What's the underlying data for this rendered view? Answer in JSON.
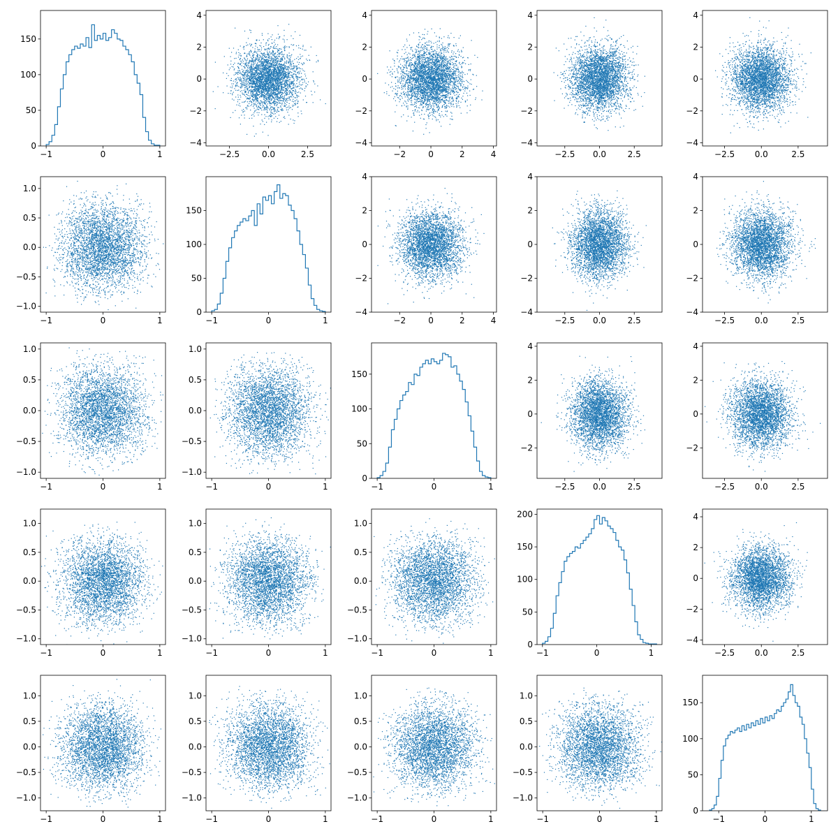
{
  "figure": {
    "background": "#ffffff",
    "accent": "#1f77b4",
    "grid": false,
    "rows": 5,
    "cols": 5
  },
  "chart_data": [
    {
      "row": 0,
      "col": 0,
      "type": "histogram",
      "xlim": [
        -1.1,
        1.1
      ],
      "ylim": [
        0,
        190
      ],
      "xticks": [
        -1,
        0,
        1
      ],
      "yticks": [
        0,
        50,
        100,
        150
      ],
      "bins": [
        -1.0,
        -0.95,
        -0.9,
        -0.85,
        -0.8,
        -0.75,
        -0.7,
        -0.65,
        -0.6,
        -0.55,
        -0.5,
        -0.45,
        -0.4,
        -0.35,
        -0.3,
        -0.25,
        -0.2,
        -0.15,
        -0.1,
        -0.05,
        0.0,
        0.05,
        0.1,
        0.15,
        0.2,
        0.25,
        0.3,
        0.35,
        0.4,
        0.45,
        0.5,
        0.55,
        0.6,
        0.65,
        0.7,
        0.75,
        0.8,
        0.85,
        0.9,
        0.95,
        1.0
      ],
      "counts": [
        2,
        6,
        15,
        30,
        55,
        80,
        100,
        118,
        128,
        135,
        140,
        137,
        143,
        140,
        152,
        138,
        170,
        148,
        155,
        150,
        158,
        148,
        152,
        163,
        158,
        150,
        148,
        140,
        135,
        128,
        118,
        100,
        88,
        72,
        40,
        20,
        8,
        3,
        1,
        1
      ]
    },
    {
      "row": 0,
      "col": 1,
      "type": "scatter",
      "distribution": "normal",
      "xlim": [
        -4,
        4
      ],
      "ylim": [
        -4.2,
        4.3
      ],
      "xticks": [
        -2.5,
        0.0,
        2.5
      ],
      "yticks": [
        -4,
        -2,
        0,
        2,
        4
      ]
    },
    {
      "row": 0,
      "col": 2,
      "type": "scatter",
      "distribution": "normal",
      "xlim": [
        -3.8,
        4.2
      ],
      "ylim": [
        -4.2,
        4.3
      ],
      "xticks": [
        -2,
        0,
        2,
        4
      ],
      "yticks": [
        -4,
        -2,
        0,
        2,
        4
      ]
    },
    {
      "row": 0,
      "col": 3,
      "type": "scatter",
      "distribution": "normal",
      "xlim": [
        -4.5,
        4.5
      ],
      "ylim": [
        -4.2,
        4.3
      ],
      "xticks": [
        -2.5,
        0.0,
        2.5
      ],
      "yticks": [
        -4,
        -2,
        0,
        2,
        4
      ]
    },
    {
      "row": 0,
      "col": 4,
      "type": "scatter",
      "distribution": "normal",
      "xlim": [
        -4,
        4.5
      ],
      "ylim": [
        -4.2,
        4.3
      ],
      "xticks": [
        -2.5,
        0.0,
        2.5
      ],
      "yticks": [
        -4,
        -2,
        0,
        2,
        4
      ]
    },
    {
      "row": 1,
      "col": 0,
      "type": "scatter",
      "distribution": "uniform",
      "xlim": [
        -1.1,
        1.1
      ],
      "ylim": [
        -1.1,
        1.2
      ],
      "xticks": [
        -1,
        0,
        1
      ],
      "yticks": [
        -1.0,
        -0.5,
        0.0,
        0.5,
        1.0
      ]
    },
    {
      "row": 1,
      "col": 1,
      "type": "histogram",
      "xlim": [
        -1.1,
        1.1
      ],
      "ylim": [
        0,
        200
      ],
      "xticks": [
        -1,
        0,
        1
      ],
      "yticks": [
        0,
        50,
        100,
        150
      ],
      "bins": [
        -1.0,
        -0.95,
        -0.9,
        -0.85,
        -0.8,
        -0.75,
        -0.7,
        -0.65,
        -0.6,
        -0.55,
        -0.5,
        -0.45,
        -0.4,
        -0.35,
        -0.3,
        -0.25,
        -0.2,
        -0.15,
        -0.1,
        -0.05,
        0.0,
        0.05,
        0.1,
        0.15,
        0.2,
        0.25,
        0.3,
        0.35,
        0.4,
        0.45,
        0.5,
        0.55,
        0.6,
        0.65,
        0.7,
        0.75,
        0.8,
        0.85,
        0.9,
        0.95,
        1.0
      ],
      "counts": [
        2,
        4,
        12,
        28,
        50,
        75,
        95,
        110,
        120,
        128,
        133,
        138,
        135,
        142,
        150,
        128,
        160,
        145,
        170,
        165,
        172,
        160,
        178,
        188,
        168,
        175,
        172,
        158,
        150,
        138,
        120,
        100,
        85,
        65,
        40,
        20,
        10,
        4,
        2,
        1
      ]
    },
    {
      "row": 1,
      "col": 2,
      "type": "scatter",
      "distribution": "normal",
      "xlim": [
        -3.8,
        4.2
      ],
      "ylim": [
        -4,
        4
      ],
      "xticks": [
        -2,
        0,
        2,
        4
      ],
      "yticks": [
        -4,
        -2,
        0,
        2,
        4
      ]
    },
    {
      "row": 1,
      "col": 3,
      "type": "scatter",
      "distribution": "normal",
      "xlim": [
        -4.5,
        4.5
      ],
      "ylim": [
        -4,
        4
      ],
      "xticks": [
        -2.5,
        0.0,
        2.5
      ],
      "yticks": [
        -4,
        -2,
        0,
        2,
        4
      ]
    },
    {
      "row": 1,
      "col": 4,
      "type": "scatter",
      "distribution": "normal",
      "xlim": [
        -4,
        4.5
      ],
      "ylim": [
        -4,
        4
      ],
      "xticks": [
        -2.5,
        0.0,
        2.5
      ],
      "yticks": [
        -4,
        -2,
        0,
        2,
        4
      ]
    },
    {
      "row": 2,
      "col": 0,
      "type": "scatter",
      "distribution": "uniform",
      "xlim": [
        -1.1,
        1.1
      ],
      "ylim": [
        -1.1,
        1.1
      ],
      "xticks": [
        -1,
        0,
        1
      ],
      "yticks": [
        -1.0,
        -0.5,
        0.0,
        0.5,
        1.0
      ]
    },
    {
      "row": 2,
      "col": 1,
      "type": "scatter",
      "distribution": "uniform",
      "xlim": [
        -1.1,
        1.1
      ],
      "ylim": [
        -1.1,
        1.1
      ],
      "xticks": [
        -1,
        0,
        1
      ],
      "yticks": [
        -1.0,
        -0.5,
        0.0,
        0.5,
        1.0
      ]
    },
    {
      "row": 2,
      "col": 2,
      "type": "histogram",
      "xlim": [
        -1.1,
        1.1
      ],
      "ylim": [
        0,
        195
      ],
      "xticks": [
        -1,
        0,
        1
      ],
      "yticks": [
        0,
        50,
        100,
        150
      ],
      "bins": [
        -1.0,
        -0.95,
        -0.9,
        -0.85,
        -0.8,
        -0.75,
        -0.7,
        -0.65,
        -0.6,
        -0.55,
        -0.5,
        -0.45,
        -0.4,
        -0.35,
        -0.3,
        -0.25,
        -0.2,
        -0.15,
        -0.1,
        -0.05,
        0.0,
        0.05,
        0.1,
        0.15,
        0.2,
        0.25,
        0.3,
        0.35,
        0.4,
        0.45,
        0.5,
        0.55,
        0.6,
        0.65,
        0.7,
        0.75,
        0.8,
        0.85,
        0.9,
        0.95,
        1.0
      ],
      "counts": [
        1,
        4,
        10,
        22,
        45,
        70,
        85,
        100,
        112,
        120,
        125,
        138,
        135,
        150,
        148,
        160,
        165,
        170,
        165,
        172,
        168,
        165,
        170,
        180,
        178,
        175,
        160,
        162,
        150,
        140,
        128,
        110,
        90,
        68,
        45,
        25,
        10,
        4,
        2,
        1
      ]
    },
    {
      "row": 2,
      "col": 3,
      "type": "scatter",
      "distribution": "normal",
      "xlim": [
        -4.5,
        4.5
      ],
      "ylim": [
        -3.8,
        4.2
      ],
      "xticks": [
        -2.5,
        0.0,
        2.5
      ],
      "yticks": [
        -2,
        0,
        2,
        4
      ]
    },
    {
      "row": 2,
      "col": 4,
      "type": "scatter",
      "distribution": "normal",
      "xlim": [
        -4,
        4.5
      ],
      "ylim": [
        -3.8,
        4.2
      ],
      "xticks": [
        -2.5,
        0.0,
        2.5
      ],
      "yticks": [
        -2,
        0,
        2,
        4
      ]
    },
    {
      "row": 3,
      "col": 0,
      "type": "scatter",
      "distribution": "uniform",
      "xlim": [
        -1.1,
        1.1
      ],
      "ylim": [
        -1.1,
        1.25
      ],
      "xticks": [
        -1,
        0,
        1
      ],
      "yticks": [
        -1.0,
        -0.5,
        0.0,
        0.5,
        1.0
      ]
    },
    {
      "row": 3,
      "col": 1,
      "type": "scatter",
      "distribution": "uniform",
      "xlim": [
        -1.1,
        1.1
      ],
      "ylim": [
        -1.1,
        1.25
      ],
      "xticks": [
        -1,
        0,
        1
      ],
      "yticks": [
        -1.0,
        -0.5,
        0.0,
        0.5,
        1.0
      ]
    },
    {
      "row": 3,
      "col": 2,
      "type": "scatter",
      "distribution": "uniform",
      "xlim": [
        -1.1,
        1.1
      ],
      "ylim": [
        -1.1,
        1.25
      ],
      "xticks": [
        -1,
        0,
        1
      ],
      "yticks": [
        -1.0,
        -0.5,
        0.0,
        0.5,
        1.0
      ]
    },
    {
      "row": 3,
      "col": 3,
      "type": "histogram",
      "xlim": [
        -1.1,
        1.2
      ],
      "ylim": [
        0,
        208
      ],
      "xticks": [
        -1,
        0,
        1
      ],
      "yticks": [
        0,
        50,
        100,
        150,
        200
      ],
      "bins": [
        -1.0,
        -0.95,
        -0.9,
        -0.85,
        -0.8,
        -0.75,
        -0.7,
        -0.65,
        -0.6,
        -0.55,
        -0.5,
        -0.45,
        -0.4,
        -0.35,
        -0.3,
        -0.25,
        -0.2,
        -0.15,
        -0.1,
        -0.05,
        0.0,
        0.05,
        0.1,
        0.15,
        0.2,
        0.25,
        0.3,
        0.35,
        0.4,
        0.45,
        0.5,
        0.55,
        0.6,
        0.65,
        0.7,
        0.75,
        0.8,
        0.85,
        0.9,
        0.95,
        1.0,
        1.05,
        1.1
      ],
      "counts": [
        2,
        5,
        12,
        25,
        48,
        75,
        95,
        112,
        128,
        135,
        140,
        143,
        150,
        148,
        155,
        160,
        165,
        170,
        178,
        192,
        198,
        185,
        195,
        190,
        182,
        178,
        172,
        160,
        150,
        145,
        130,
        110,
        85,
        60,
        35,
        15,
        8,
        3,
        2,
        1,
        1,
        1
      ]
    },
    {
      "row": 3,
      "col": 4,
      "type": "scatter",
      "distribution": "normal",
      "xlim": [
        -4,
        4.5
      ],
      "ylim": [
        -4.3,
        4.5
      ],
      "xticks": [
        -2.5,
        0.0,
        2.5
      ],
      "yticks": [
        -4,
        -2,
        0,
        2,
        4
      ]
    },
    {
      "row": 4,
      "col": 0,
      "type": "scatter",
      "distribution": "uniform",
      "xlim": [
        -1.1,
        1.1
      ],
      "ylim": [
        -1.25,
        1.4
      ],
      "xticks": [
        -1,
        0,
        1
      ],
      "yticks": [
        -1.0,
        -0.5,
        0.0,
        0.5,
        1.0
      ]
    },
    {
      "row": 4,
      "col": 1,
      "type": "scatter",
      "distribution": "uniform",
      "xlim": [
        -1.1,
        1.1
      ],
      "ylim": [
        -1.25,
        1.4
      ],
      "xticks": [
        -1,
        0,
        1
      ],
      "yticks": [
        -1.0,
        -0.5,
        0.0,
        0.5,
        1.0
      ]
    },
    {
      "row": 4,
      "col": 2,
      "type": "scatter",
      "distribution": "uniform",
      "xlim": [
        -1.1,
        1.1
      ],
      "ylim": [
        -1.25,
        1.4
      ],
      "xticks": [
        -1,
        0,
        1
      ],
      "yticks": [
        -1.0,
        -0.5,
        0.0,
        0.5,
        1.0
      ]
    },
    {
      "row": 4,
      "col": 3,
      "type": "scatter",
      "distribution": "uniform",
      "xlim": [
        -1.1,
        1.1
      ],
      "ylim": [
        -1.25,
        1.4
      ],
      "xticks": [
        -1,
        0,
        1
      ],
      "yticks": [
        -1.0,
        -0.5,
        0.0,
        0.5,
        1.0
      ]
    },
    {
      "row": 4,
      "col": 4,
      "type": "histogram",
      "xlim": [
        -1.35,
        1.35
      ],
      "ylim": [
        0,
        188
      ],
      "xticks": [
        -1,
        0,
        1
      ],
      "yticks": [
        0,
        50,
        100,
        150
      ],
      "bins": [
        -1.2,
        -1.15,
        -1.1,
        -1.05,
        -1.0,
        -0.95,
        -0.9,
        -0.85,
        -0.8,
        -0.75,
        -0.7,
        -0.65,
        -0.6,
        -0.55,
        -0.5,
        -0.45,
        -0.4,
        -0.35,
        -0.3,
        -0.25,
        -0.2,
        -0.15,
        -0.1,
        -0.05,
        0.0,
        0.05,
        0.1,
        0.15,
        0.2,
        0.25,
        0.3,
        0.35,
        0.4,
        0.45,
        0.5,
        0.55,
        0.6,
        0.65,
        0.7,
        0.75,
        0.8,
        0.85,
        0.9,
        0.95,
        1.0,
        1.05,
        1.1,
        1.15,
        1.2
      ],
      "counts": [
        1,
        3,
        8,
        20,
        45,
        70,
        90,
        100,
        105,
        110,
        108,
        112,
        115,
        110,
        118,
        112,
        120,
        115,
        122,
        118,
        125,
        120,
        128,
        122,
        130,
        125,
        132,
        128,
        135,
        140,
        138,
        145,
        150,
        155,
        165,
        175,
        160,
        150,
        145,
        130,
        120,
        100,
        80,
        60,
        30,
        10,
        3,
        1
      ]
    }
  ]
}
